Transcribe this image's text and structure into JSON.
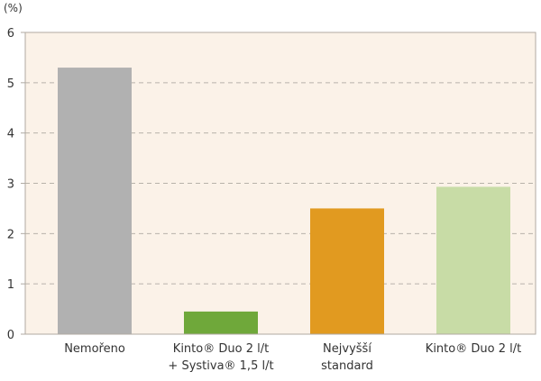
{
  "chart_data": {
    "type": "bar",
    "unit_label": "(%)",
    "y_ticks": [
      "0",
      "1",
      "2",
      "3",
      "4",
      "5",
      "6"
    ],
    "ylim": [
      0,
      6
    ],
    "grid": true,
    "categories": [
      {
        "line1": "Nemořeno",
        "line2": ""
      },
      {
        "line1": "Kinto® Duo 2 l/t",
        "line2": "+ Systiva® 1,5 l/t"
      },
      {
        "line1": "Nejvyšší",
        "line2": "standard"
      },
      {
        "line1": "Kinto® Duo 2 l/t",
        "line2": ""
      }
    ],
    "values": [
      5.3,
      0.45,
      2.5,
      2.93
    ],
    "colors": {
      "plot_bg": "#fbf2e8",
      "axis": "#b0aaa2",
      "grid": "#b8b2aa",
      "bars": [
        "#b1b1b1",
        "#6fa83a",
        "#e19a20",
        "#c8dca6"
      ]
    }
  }
}
